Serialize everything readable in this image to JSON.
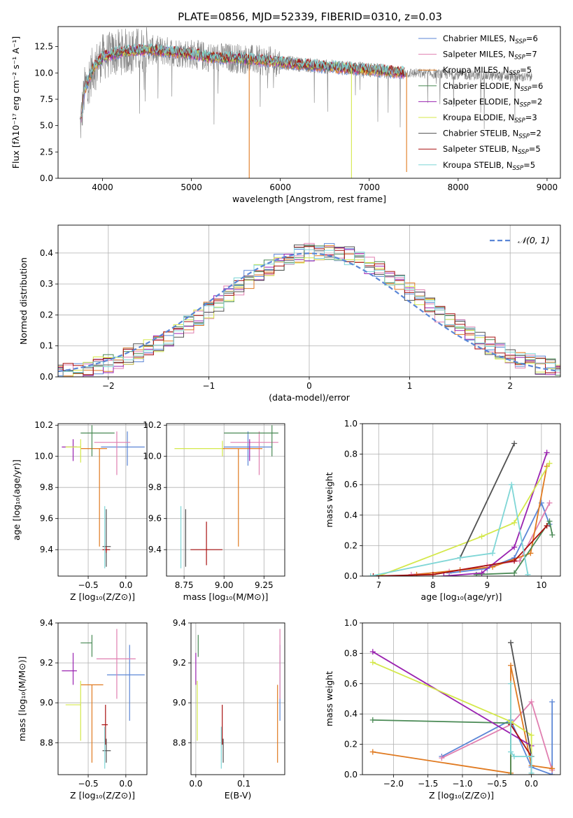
{
  "figure": {
    "title": "PLATE=0856, MJD=52339, FIBERID=0310, z=0.03"
  },
  "series": [
    {
      "name": "Chabrier MILES",
      "nssp": "6",
      "color": "#5b86d6"
    },
    {
      "name": "Salpeter MILES",
      "nssp": "7",
      "color": "#e07fb0"
    },
    {
      "name": "Kroupa MILES",
      "nssp": "5",
      "color": "#e07a20"
    },
    {
      "name": "Chabrier ELODIE",
      "nssp": "6",
      "color": "#4a8a55"
    },
    {
      "name": "Salpeter ELODIE",
      "nssp": "2",
      "color": "#9a22b0"
    },
    {
      "name": "Kroupa ELODIE",
      "nssp": "3",
      "color": "#d4e84a"
    },
    {
      "name": "Chabrier STELIB",
      "nssp": "2",
      "color": "#505050"
    },
    {
      "name": "Salpeter STELIB",
      "nssp": "5",
      "color": "#a81010"
    },
    {
      "name": "Kroupa STELIB",
      "nssp": "5",
      "color": "#7fd6d6"
    }
  ],
  "chart_data": [
    {
      "id": "spectrum",
      "type": "line",
      "xlabel": "wavelength [Angstrom, rest frame]",
      "ylabel": "Flux [fλ10⁻¹⁷ erg cm⁻² s⁻¹ A⁻¹]",
      "xlim": [
        3500,
        9150
      ],
      "ylim": [
        0,
        14.4
      ],
      "xticks": [
        4000,
        5000,
        6000,
        7000,
        8000,
        9000
      ],
      "yticks": [
        0.0,
        2.5,
        5.0,
        7.5,
        10.0,
        12.5
      ],
      "legend": "top-right",
      "observed_color": "#808080",
      "model_x": [
        3750,
        3800,
        3900,
        4000,
        4200,
        4500,
        4800,
        5000,
        5200,
        5500,
        6000,
        6500,
        7000,
        7400
      ],
      "model_y": [
        5.0,
        8.5,
        10.5,
        11.5,
        12.0,
        12.2,
        12.0,
        11.8,
        11.5,
        11.4,
        11.0,
        10.6,
        10.3,
        10.0
      ],
      "drops": [
        {
          "series": 2,
          "x": 5650,
          "y": 0.0
        },
        {
          "series": 5,
          "x": 6800,
          "y": 0.0
        },
        {
          "series": 2,
          "x": 7420,
          "y": 0.6
        }
      ]
    },
    {
      "id": "residuals",
      "type": "step",
      "xlabel": "(data-model)/error",
      "ylabel": "Normed distribution",
      "xlim": [
        -2.5,
        2.5
      ],
      "ylim": [
        0,
        0.49
      ],
      "xticks": [
        -2,
        -1,
        0,
        1,
        2
      ],
      "yticks": [
        0.0,
        0.1,
        0.2,
        0.3,
        0.4
      ],
      "grid": true,
      "bin_width": 0.1,
      "reference": {
        "label": "𝒩(0, 1)",
        "mean": 0,
        "sigma": 1,
        "color": "#5b86d6"
      },
      "legend": "top-right"
    },
    {
      "id": "age_vs_Z",
      "type": "errorbar",
      "xlabel": "Z [log₁₀(Z/Z⊙)]",
      "ylabel": "age  [log₁₀(age/yr)]",
      "xlim": [
        -0.9,
        0.28
      ],
      "ylim": [
        9.23,
        10.21
      ],
      "xticks": [
        -0.5,
        0.0
      ],
      "yticks": [
        9.4,
        9.6,
        9.8,
        10.0,
        10.2
      ],
      "points": [
        {
          "series": 0,
          "x": 0.02,
          "xerr": [
            0.35,
            0.23
          ],
          "y": 10.06,
          "yerr": [
            0.12,
            0.1
          ]
        },
        {
          "series": 1,
          "x": -0.12,
          "xerr": [
            0.3,
            0.18
          ],
          "y": 10.09,
          "yerr": [
            0.21,
            0.07
          ]
        },
        {
          "series": 2,
          "x": -0.35,
          "xerr": [
            0.25,
            0.1
          ],
          "y": 10.05,
          "yerr": [
            0.63,
            0.0
          ]
        },
        {
          "series": 3,
          "x": -0.45,
          "xerr": [
            0.15,
            0.3
          ],
          "y": 10.15,
          "yerr": [
            0.15,
            0.05
          ]
        },
        {
          "series": 4,
          "x": -0.7,
          "xerr": [
            0.15,
            0.05
          ],
          "y": 10.06,
          "yerr": [
            0.09,
            0.05
          ]
        },
        {
          "series": 5,
          "x": -0.6,
          "xerr": [
            0.2,
            0.0
          ],
          "y": 10.06,
          "yerr": [
            0.1,
            0.05
          ]
        },
        {
          "series": 6,
          "x": -0.26,
          "xerr": [
            0.05,
            0.06
          ],
          "y": 9.42,
          "yerr": [
            0.13,
            0.24
          ]
        },
        {
          "series": 7,
          "x": -0.26,
          "xerr": [
            0.05,
            0.05
          ],
          "y": 9.4,
          "yerr": [
            0.02,
            0.02
          ]
        },
        {
          "series": 8,
          "x": -0.28,
          "xerr": [
            0.0,
            0.0
          ],
          "y": 9.55,
          "yerr": [
            0.27,
            0.13
          ]
        }
      ]
    },
    {
      "id": "age_vs_mass",
      "type": "errorbar",
      "xlabel": "mass [log₁₀(M/M⊙)]",
      "ylabel": "",
      "xlim": [
        8.64,
        9.38
      ],
      "ylim": [
        9.23,
        10.21
      ],
      "xticks": [
        8.75,
        9.0,
        9.25
      ],
      "yticks": [
        9.4,
        9.6,
        9.8,
        10.0,
        10.2
      ],
      "points": [
        {
          "series": 0,
          "x": 9.15,
          "xerr": [
            0.15,
            0.15
          ],
          "y": 10.06,
          "yerr": [
            0.12,
            0.1
          ]
        },
        {
          "series": 1,
          "x": 9.22,
          "xerr": [
            0.18,
            0.12
          ],
          "y": 10.09,
          "yerr": [
            0.21,
            0.07
          ]
        },
        {
          "series": 2,
          "x": 9.09,
          "xerr": [
            0.1,
            0.15
          ],
          "y": 10.05,
          "yerr": [
            0.63,
            0.0
          ]
        },
        {
          "series": 3,
          "x": 9.3,
          "xerr": [
            0.3,
            0.04
          ],
          "y": 10.15,
          "yerr": [
            0.15,
            0.05
          ]
        },
        {
          "series": 4,
          "x": 9.16,
          "xerr": [
            0.0,
            0.0
          ],
          "y": 10.06,
          "yerr": [
            0.09,
            0.05
          ]
        },
        {
          "series": 5,
          "x": 8.99,
          "xerr": [
            0.3,
            0.0
          ],
          "y": 10.05,
          "yerr": [
            0.05,
            0.05
          ]
        },
        {
          "series": 6,
          "x": 8.76,
          "xerr": [
            0.0,
            0.0
          ],
          "y": 9.42,
          "yerr": [
            0.13,
            0.24
          ]
        },
        {
          "series": 7,
          "x": 8.89,
          "xerr": [
            0.1,
            0.1
          ],
          "y": 9.4,
          "yerr": [
            0.1,
            0.18
          ]
        },
        {
          "series": 8,
          "x": 8.73,
          "xerr": [
            0.0,
            0.0
          ],
          "y": 9.55,
          "yerr": [
            0.27,
            0.13
          ]
        }
      ]
    },
    {
      "id": "massweight_vs_age",
      "type": "line",
      "xlabel": "age  [log₁₀(age/yr)]",
      "ylabel": "mass weight",
      "xlim": [
        6.7,
        10.35
      ],
      "ylim": [
        0,
        1.0
      ],
      "xticks": [
        7,
        8,
        9,
        10
      ],
      "yticks": [
        0.0,
        0.2,
        0.4,
        0.6,
        0.8,
        1.0
      ],
      "grid": true,
      "lines": [
        {
          "series": 0,
          "x": [
            8.3,
            9.0,
            9.5,
            10.0,
            10.15
          ],
          "y": [
            0.02,
            0.05,
            0.12,
            0.48,
            0.34
          ]
        },
        {
          "series": 1,
          "x": [
            7.6,
            8.3,
            9.0,
            9.6,
            10.15
          ],
          "y": [
            0.01,
            0.03,
            0.07,
            0.1,
            0.48
          ]
        },
        {
          "series": 2,
          "x": [
            7.7,
            8.5,
            9.1,
            9.8,
            10.1
          ],
          "y": [
            0.01,
            0.04,
            0.06,
            0.15,
            0.72
          ]
        },
        {
          "series": 3,
          "x": [
            8.8,
            9.5,
            10.15,
            10.2
          ],
          "y": [
            0.01,
            0.02,
            0.36,
            0.27
          ]
        },
        {
          "series": 4,
          "x": [
            8.2,
            8.9,
            9.5,
            10.1
          ],
          "y": [
            0.0,
            0.02,
            0.19,
            0.81
          ]
        },
        {
          "series": 5,
          "x": [
            7.0,
            8.9,
            9.5,
            10.15
          ],
          "y": [
            0.0,
            0.26,
            0.35,
            0.74
          ]
        },
        {
          "series": 6,
          "x": [
            8.5,
            9.5
          ],
          "y": [
            0.12,
            0.87
          ]
        },
        {
          "series": 7,
          "x": [
            6.9,
            8.0,
            9.5,
            10.1
          ],
          "y": [
            0.0,
            0.01,
            0.1,
            0.33
          ]
        },
        {
          "series": 8,
          "x": [
            6.85,
            8.5,
            9.1,
            9.45,
            9.75
          ],
          "y": [
            0.0,
            0.12,
            0.15,
            0.6,
            0.01
          ]
        }
      ]
    },
    {
      "id": "mass_vs_Z",
      "type": "errorbar",
      "xlabel": "Z [log₁₀(Z/Z⊙)]",
      "ylabel": "mass [log₁₀(M/M⊙)]",
      "xlim": [
        -0.9,
        0.28
      ],
      "ylim": [
        8.64,
        9.4
      ],
      "xticks": [
        -0.5,
        0.0
      ],
      "yticks": [
        8.8,
        9.0,
        9.2,
        9.4
      ],
      "points": [
        {
          "series": 0,
          "x": 0.05,
          "xerr": [
            0.3,
            0.2
          ],
          "y": 9.14,
          "yerr": [
            0.23,
            0.15
          ]
        },
        {
          "series": 1,
          "x": -0.12,
          "xerr": [
            0.27,
            0.25
          ],
          "y": 9.22,
          "yerr": [
            0.2,
            0.15
          ]
        },
        {
          "series": 2,
          "x": -0.45,
          "xerr": [
            0.15,
            0.15
          ],
          "y": 9.09,
          "yerr": [
            0.39,
            0.0
          ]
        },
        {
          "series": 3,
          "x": -0.45,
          "xerr": [
            0.15,
            0.0
          ],
          "y": 9.3,
          "yerr": [
            0.07,
            0.04
          ]
        },
        {
          "series": 4,
          "x": -0.7,
          "xerr": [
            0.15,
            0.05
          ],
          "y": 9.16,
          "yerr": [
            0.07,
            0.09
          ]
        },
        {
          "series": 5,
          "x": -0.6,
          "xerr": [
            0.2,
            0.0
          ],
          "y": 8.99,
          "yerr": [
            0.18,
            0.12
          ]
        },
        {
          "series": 6,
          "x": -0.26,
          "xerr": [
            0.05,
            0.06
          ],
          "y": 8.76,
          "yerr": [
            0.06,
            0.06
          ]
        },
        {
          "series": 7,
          "x": -0.27,
          "xerr": [
            0.05,
            0.03
          ],
          "y": 8.89,
          "yerr": [
            0.1,
            0.1
          ]
        },
        {
          "series": 8,
          "x": -0.28,
          "xerr": [
            0.0,
            0.0
          ],
          "y": 8.73,
          "yerr": [
            0.06,
            0.15
          ]
        }
      ]
    },
    {
      "id": "mass_vs_EBV",
      "type": "errorbar",
      "xlabel": "E(B-V)",
      "ylabel": "",
      "xlim": [
        -0.01,
        0.185
      ],
      "ylim": [
        8.64,
        9.4
      ],
      "xticks": [
        0.0,
        0.1
      ],
      "yticks": [
        8.8,
        9.0,
        9.2,
        9.4
      ],
      "points": [
        {
          "series": 0,
          "x": 0.175,
          "xerr": [
            0,
            0
          ],
          "y": 9.14,
          "yerr": [
            0.23,
            0.15
          ]
        },
        {
          "series": 1,
          "x": 0.175,
          "xerr": [
            0,
            0
          ],
          "y": 9.22,
          "yerr": [
            0.2,
            0.15
          ]
        },
        {
          "series": 2,
          "x": 0.17,
          "xerr": [
            0,
            0
          ],
          "y": 9.09,
          "yerr": [
            0.39,
            0.0
          ]
        },
        {
          "series": 3,
          "x": 0.005,
          "xerr": [
            0,
            0
          ],
          "y": 9.3,
          "yerr": [
            0.07,
            0.04
          ]
        },
        {
          "series": 4,
          "x": 0.0,
          "xerr": [
            0,
            0
          ],
          "y": 9.16,
          "yerr": [
            0.07,
            0.09
          ]
        },
        {
          "series": 5,
          "x": 0.003,
          "xerr": [
            0,
            0
          ],
          "y": 8.99,
          "yerr": [
            0.18,
            0.12
          ]
        },
        {
          "series": 6,
          "x": 0.057,
          "xerr": [
            0,
            0
          ],
          "y": 8.76,
          "yerr": [
            0.06,
            0.06
          ]
        },
        {
          "series": 7,
          "x": 0.055,
          "xerr": [
            0,
            0
          ],
          "y": 8.89,
          "yerr": [
            0.1,
            0.1
          ]
        },
        {
          "series": 8,
          "x": 0.053,
          "xerr": [
            0,
            0
          ],
          "y": 8.73,
          "yerr": [
            0.06,
            0.15
          ]
        }
      ]
    },
    {
      "id": "massweight_vs_Z",
      "type": "line",
      "xlabel": "Z [log₁₀(Z/Z⊙)]",
      "ylabel": "mass weight",
      "xlim": [
        -2.45,
        0.42
      ],
      "ylim": [
        0,
        1.0
      ],
      "xticks": [
        -2.0,
        -1.5,
        -1.0,
        -0.5,
        0.0
      ],
      "yticks": [
        0.0,
        0.2,
        0.4,
        0.6,
        0.8,
        1.0
      ],
      "grid": true,
      "lines": [
        {
          "series": 0,
          "x": [
            -1.3,
            -0.3,
            0.0,
            0.3,
            0.3
          ],
          "y": [
            0.12,
            0.36,
            0.05,
            0.0,
            0.48
          ]
        },
        {
          "series": 1,
          "x": [
            -1.3,
            -0.3,
            0.0,
            0.3
          ],
          "y": [
            0.11,
            0.33,
            0.48,
            0.03
          ]
        },
        {
          "series": 2,
          "x": [
            -2.3,
            -0.3,
            -0.3,
            0.0,
            0.3
          ],
          "y": [
            0.15,
            0.01,
            0.72,
            0.06,
            0.04
          ]
        },
        {
          "series": 3,
          "x": [
            -2.3,
            -0.3,
            -0.3
          ],
          "y": [
            0.36,
            0.34,
            0.0
          ]
        },
        {
          "series": 4,
          "x": [
            -2.3,
            0.0
          ],
          "y": [
            0.81,
            0.19
          ]
        },
        {
          "series": 5,
          "x": [
            -2.3,
            -0.3,
            0.0,
            0.0
          ],
          "y": [
            0.74,
            0.35,
            0.26,
            0.0
          ]
        },
        {
          "series": 6,
          "x": [
            -0.3,
            0.0
          ],
          "y": [
            0.87,
            0.12
          ]
        },
        {
          "series": 7,
          "x": [
            -0.3,
            0.0,
            0.0
          ],
          "y": [
            0.33,
            0.12,
            0.0
          ]
        },
        {
          "series": 8,
          "x": [
            -0.3,
            -0.3,
            -0.25,
            0.0,
            0.0
          ],
          "y": [
            0.6,
            0.15,
            0.12,
            0.12,
            0.01
          ]
        }
      ]
    }
  ]
}
